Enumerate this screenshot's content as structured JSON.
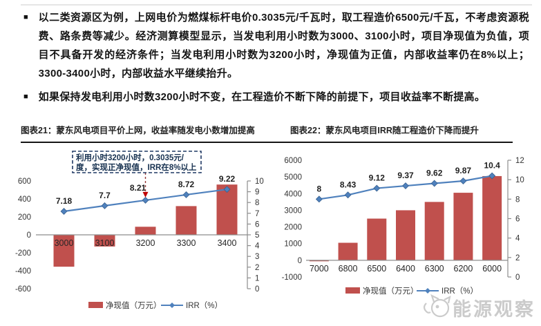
{
  "bullets": [
    {
      "marker": "■",
      "text": "以二类资源区为例，上网电价为燃煤标杆电价0.3035元/千瓦时，取工程造价6500元/千瓦，不考虑资源税费、路条费等减少。经济测算模型显示，当发电利用小时数为3000、3100小时，项目净现值为负值，项目不具备开发的经济条件；当发电利用小时数为3200小时，净现值为正值，内部收益率仍在8%以上；3300-3400小时，内部收益水平继续抬升。"
    },
    {
      "marker": "■",
      "text": "如果保持发电利用小时数3200小时不变，在工程造价不断下降的前提下，项目收益率不断提高。"
    }
  ],
  "chart_data": [
    {
      "type": "bar+line",
      "title": "图表21：蒙东风电项目平价上网，收益率随发电小数增加提高",
      "categories": [
        "3000",
        "3100",
        "3200",
        "3300",
        "3400"
      ],
      "series": [
        {
          "name": "净现值（万元）",
          "type": "bar",
          "axis": "left",
          "values": [
            -355,
            -130,
            90,
            320,
            560
          ]
        },
        {
          "name": "IRR（%）",
          "type": "line",
          "axis": "right",
          "values": [
            7.18,
            7.7,
            8.21,
            8.72,
            9.22
          ],
          "labels": [
            "7.18",
            "7.7",
            "8.21",
            "8.72",
            "9.22"
          ]
        }
      ],
      "left_axis": {
        "min": -600,
        "max": 600,
        "ticks": [
          600,
          400,
          200,
          0,
          -200,
          -400,
          -600
        ]
      },
      "right_axis": {
        "min": 0,
        "max": 10,
        "ticks": [
          10,
          9,
          8,
          7,
          6,
          5,
          4,
          3,
          2,
          1,
          0
        ]
      },
      "legend": [
        "净现值（万元）",
        "IRR（%）"
      ],
      "grid": false,
      "annotation": {
        "lines": [
          "利用小时3200小时，0.3035元/",
          "度，实现正净现值，IRR在8%以上"
        ],
        "target_category": "3200",
        "target_series": "IRR（%）"
      }
    },
    {
      "type": "bar+line",
      "title": "图表22：蒙东风电项目IRR随工程造价下降而提升",
      "categories": [
        "7000",
        "6800",
        "6500",
        "6400",
        "6300",
        "6200",
        "6000"
      ],
      "series": [
        {
          "name": "净现值（万元）",
          "type": "bar",
          "axis": "left",
          "values": [
            -60,
            1050,
            2500,
            3000,
            3500,
            4050,
            5050
          ]
        },
        {
          "name": "IRR（%）",
          "type": "line",
          "axis": "right",
          "values": [
            8,
            8.43,
            9.12,
            9.37,
            9.62,
            9.87,
            10.4
          ],
          "labels": [
            "8",
            "8.43",
            "9.12",
            "9.37",
            "9.62",
            "9.87",
            "10.4"
          ]
        }
      ],
      "left_axis": {
        "min": -1000,
        "max": 6000,
        "ticks": [
          6000,
          5000,
          4000,
          3000,
          2000,
          1000,
          0,
          -1000
        ]
      },
      "right_axis": {
        "min": 0,
        "max": 12,
        "ticks": [
          12,
          10,
          8,
          6,
          4,
          2,
          0
        ]
      },
      "legend": [
        "净现值（万元）",
        "IRR（%）"
      ],
      "grid": false
    }
  ],
  "watermark": {
    "text": "能源观察"
  },
  "colors": {
    "bar": "#C0504D",
    "line": "#4F81BD",
    "axis_line": "#8C8C8C",
    "tick_text": "#333333",
    "category_text": "#262626",
    "data_label": "#1F1F1F",
    "annotation_border": "#1F3864",
    "annotation_text": "#16304F",
    "arrow": "#953735",
    "arrow_head": "#C00000",
    "watermark": "#CBCBCB"
  }
}
